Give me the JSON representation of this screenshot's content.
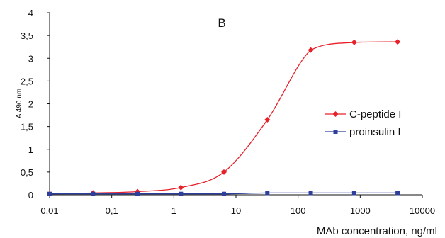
{
  "chart_data": {
    "type": "line",
    "title": "B",
    "xlabel": "MAb concentration, ng/ml",
    "ylabel": "A 490 nm",
    "x_scale": "log",
    "xlim": [
      0.01,
      10000
    ],
    "ylim": [
      0,
      4
    ],
    "x_ticks": [
      "0,01",
      "0,1",
      "1",
      "10",
      "100",
      "1000",
      "10000"
    ],
    "y_ticks": [
      "0",
      "0,5",
      "1",
      "1,5",
      "2",
      "2,5",
      "3",
      "3,5",
      "4"
    ],
    "grid": false,
    "legend_position": "right",
    "series": [
      {
        "name": "C-peptide I",
        "color": "#e8202a",
        "marker": "diamond",
        "x": [
          0.01,
          0.05,
          0.26,
          1.3,
          6.4,
          32,
          160,
          800,
          4000
        ],
        "y": [
          0.02,
          0.04,
          0.07,
          0.16,
          0.5,
          1.65,
          3.18,
          3.35,
          3.36
        ]
      },
      {
        "name": "proinsulin I",
        "color": "#2d3f9a",
        "marker": "square",
        "x": [
          0.01,
          0.05,
          0.26,
          1.3,
          6.4,
          32,
          160,
          800,
          4000
        ],
        "y": [
          0.02,
          0.02,
          0.02,
          0.02,
          0.02,
          0.04,
          0.04,
          0.04,
          0.04
        ]
      }
    ]
  }
}
